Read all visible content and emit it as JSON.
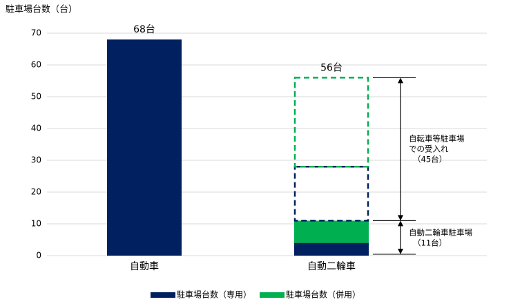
{
  "chart_data": {
    "type": "stacked_bar",
    "y_axis_title": "駐車場台数（台）",
    "categories": [
      "自動車",
      "自動二輪車"
    ],
    "series": [
      {
        "name": "駐車場台数（専用）",
        "color": "#002060",
        "values": [
          68,
          4
        ]
      },
      {
        "name": "駐車場台数（併用）",
        "color": "#00b050",
        "values": [
          null,
          7
        ]
      },
      {
        "color": "#002060",
        "dashed": true,
        "values": [
          null,
          17
        ]
      },
      {
        "color": "#00b050",
        "dashed": true,
        "values": [
          null,
          28
        ]
      }
    ],
    "totals": [
      68,
      56
    ],
    "total_labels": [
      "68台",
      "56台"
    ],
    "annotations": [
      {
        "lines": [
          "自転車等駐車場",
          "での受入れ",
          "（45台）"
        ],
        "range": [
          11,
          56
        ]
      },
      {
        "lines": [
          "自動二輪車駐車場",
          "（11台）"
        ],
        "range": [
          0,
          11
        ]
      }
    ],
    "ylim": [
      0,
      70
    ],
    "yticks": [
      0,
      10,
      20,
      30,
      40,
      50,
      60,
      70
    ],
    "grid": true,
    "legend": "bottom"
  }
}
